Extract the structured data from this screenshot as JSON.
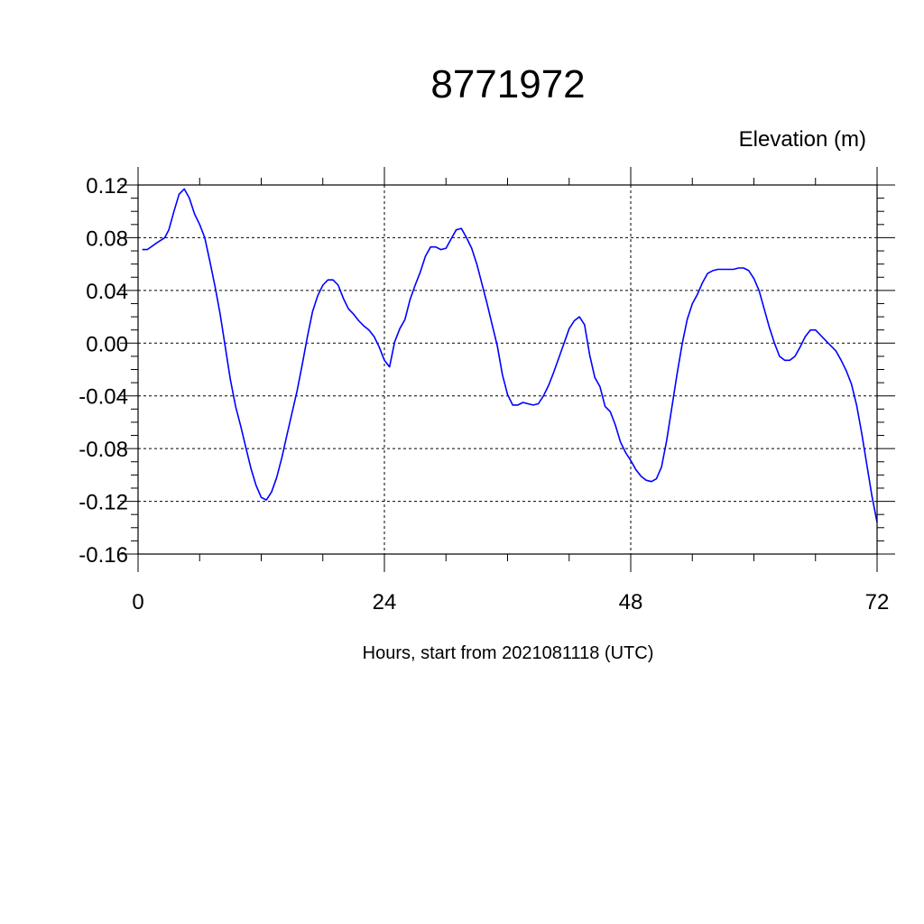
{
  "chart_data": {
    "type": "line",
    "title": "8771972",
    "ylabel": "Elevation (m)",
    "xlabel": "Hours, start from 2021081118 (UTC)",
    "xlim": [
      0,
      72
    ],
    "ylim": [
      -0.16,
      0.12
    ],
    "x_ticks": [
      0,
      24,
      48,
      72
    ],
    "x_tick_labels": [
      "0",
      "24",
      "48",
      "72"
    ],
    "y_ticks": [
      0.12,
      0.08,
      0.04,
      0.0,
      -0.04,
      -0.08,
      -0.12,
      -0.16
    ],
    "y_tick_labels": [
      "0.12",
      "0.08",
      "0.04",
      "0.00",
      "-0.04",
      "-0.08",
      "-0.12",
      "-0.16"
    ],
    "grid": true,
    "line_color": "#0000ff",
    "series": [
      {
        "x": [
          0.4,
          0.9,
          1.8,
          2.6,
          3.0,
          3.5,
          4.0,
          4.5,
          5.0,
          5.5,
          6.0,
          6.5,
          7.0,
          7.5,
          8.0,
          8.5,
          9.0,
          9.5,
          10.0,
          10.5,
          11.0,
          11.5,
          12.0,
          12.5,
          13.0,
          13.5,
          14.0,
          14.5,
          15.0,
          15.5,
          16.0,
          16.5,
          17.0,
          17.5,
          18.0,
          18.5,
          19.0,
          19.5,
          20.0,
          20.5,
          21.0,
          21.5,
          22.0,
          22.5,
          23.0,
          23.5,
          24.0,
          24.5,
          25.0,
          25.5,
          26.0,
          26.5,
          27.0,
          27.5,
          28.0,
          28.5,
          29.0,
          29.5,
          30.0,
          30.5,
          31.0,
          31.5,
          32.0,
          32.5,
          33.0,
          33.5,
          34.0,
          34.5,
          35.0,
          35.5,
          36.0,
          36.5,
          37.0,
          37.5,
          38.0,
          38.5,
          39.0,
          39.5,
          40.0,
          40.5,
          41.0,
          41.5,
          42.0,
          42.5,
          43.0,
          43.5,
          44.0,
          44.5,
          45.0,
          45.5,
          46.0,
          46.5,
          47.0,
          47.5,
          48.0,
          48.5,
          49.0,
          49.5,
          50.0,
          50.5,
          51.0,
          51.5,
          52.0,
          52.5,
          53.0,
          53.5,
          54.0,
          54.5,
          55.0,
          55.5,
          56.0,
          56.5,
          57.0,
          57.5,
          58.0,
          58.5,
          59.0,
          59.5,
          60.0,
          60.5,
          61.0,
          61.5,
          62.0,
          62.5,
          63.0,
          63.5,
          64.0,
          64.5,
          65.0,
          65.5,
          66.0,
          66.5,
          67.0,
          67.5,
          68.0,
          68.5,
          69.0,
          69.5,
          70.0,
          70.5,
          71.0,
          71.5,
          72.0
        ],
        "values": [
          0.071,
          0.071,
          0.076,
          0.08,
          0.086,
          0.1,
          0.113,
          0.117,
          0.11,
          0.098,
          0.09,
          0.08,
          0.062,
          0.043,
          0.022,
          -0.003,
          -0.028,
          -0.048,
          -0.063,
          -0.079,
          -0.095,
          -0.108,
          -0.117,
          -0.119,
          -0.113,
          -0.102,
          -0.087,
          -0.07,
          -0.053,
          -0.036,
          -0.016,
          0.005,
          0.024,
          0.036,
          0.044,
          0.048,
          0.048,
          0.044,
          0.034,
          0.026,
          0.022,
          0.017,
          0.013,
          0.01,
          0.005,
          -0.003,
          -0.013,
          -0.018,
          0.001,
          0.011,
          0.018,
          0.033,
          0.044,
          0.054,
          0.066,
          0.073,
          0.073,
          0.071,
          0.072,
          0.079,
          0.086,
          0.087,
          0.08,
          0.072,
          0.06,
          0.045,
          0.03,
          0.014,
          -0.002,
          -0.024,
          -0.039,
          -0.047,
          -0.047,
          -0.045,
          -0.046,
          -0.047,
          -0.046,
          -0.04,
          -0.032,
          -0.022,
          -0.011,
          0.0,
          0.011,
          0.017,
          0.02,
          0.014,
          -0.009,
          -0.026,
          -0.033,
          -0.048,
          -0.052,
          -0.062,
          -0.075,
          -0.083,
          -0.089,
          -0.096,
          -0.101,
          -0.104,
          -0.105,
          -0.103,
          -0.094,
          -0.074,
          -0.049,
          -0.024,
          -0.001,
          0.018,
          0.03,
          0.037,
          0.046,
          0.053,
          0.055,
          0.056,
          0.056,
          0.056,
          0.056,
          0.057,
          0.057,
          0.055,
          0.049,
          0.04,
          0.026,
          0.012,
          0.0,
          -0.01,
          -0.013,
          -0.013,
          -0.01,
          -0.003,
          0.005,
          0.01,
          0.01,
          0.006,
          0.002,
          -0.002,
          -0.006,
          -0.013,
          -0.021,
          -0.031,
          -0.047,
          -0.068,
          -0.092,
          -0.116,
          -0.136
        ]
      }
    ]
  }
}
